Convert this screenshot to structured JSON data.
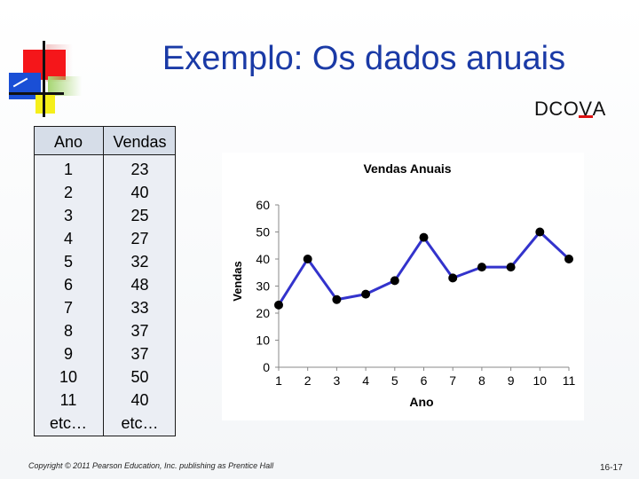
{
  "slide": {
    "title": "Exemplo: Os dados anuais",
    "dcova_prefix": "DCO",
    "dcova_highlight": "V",
    "dcova_suffix": "A",
    "copyright": "Copyright © 2011 Pearson Education, Inc. publishing as Prentice Hall",
    "page_number": "16-17"
  },
  "table": {
    "headers": [
      "Ano",
      "Vendas"
    ],
    "ano": [
      "1",
      "2",
      "3",
      "4",
      "5",
      "6",
      "7",
      "8",
      "9",
      "10",
      "11",
      "etc…"
    ],
    "vendas": [
      "23",
      "40",
      "25",
      "27",
      "32",
      "48",
      "33",
      "37",
      "37",
      "50",
      "40",
      "etc…"
    ]
  },
  "chart_data": {
    "type": "line",
    "title": "Vendas Anuais",
    "xlabel": "Ano",
    "ylabel": "Vendas",
    "x": [
      1,
      2,
      3,
      4,
      5,
      6,
      7,
      8,
      9,
      10,
      11
    ],
    "series": [
      {
        "values": [
          23,
          40,
          25,
          27,
          32,
          48,
          33,
          37,
          37,
          50,
          40
        ]
      }
    ],
    "ylim": [
      0,
      60
    ],
    "yticks": [
      0,
      10,
      20,
      30,
      40,
      50,
      60
    ],
    "grid": false,
    "legend": "none",
    "line_color": "#3333cc",
    "marker_color": "#000000"
  }
}
